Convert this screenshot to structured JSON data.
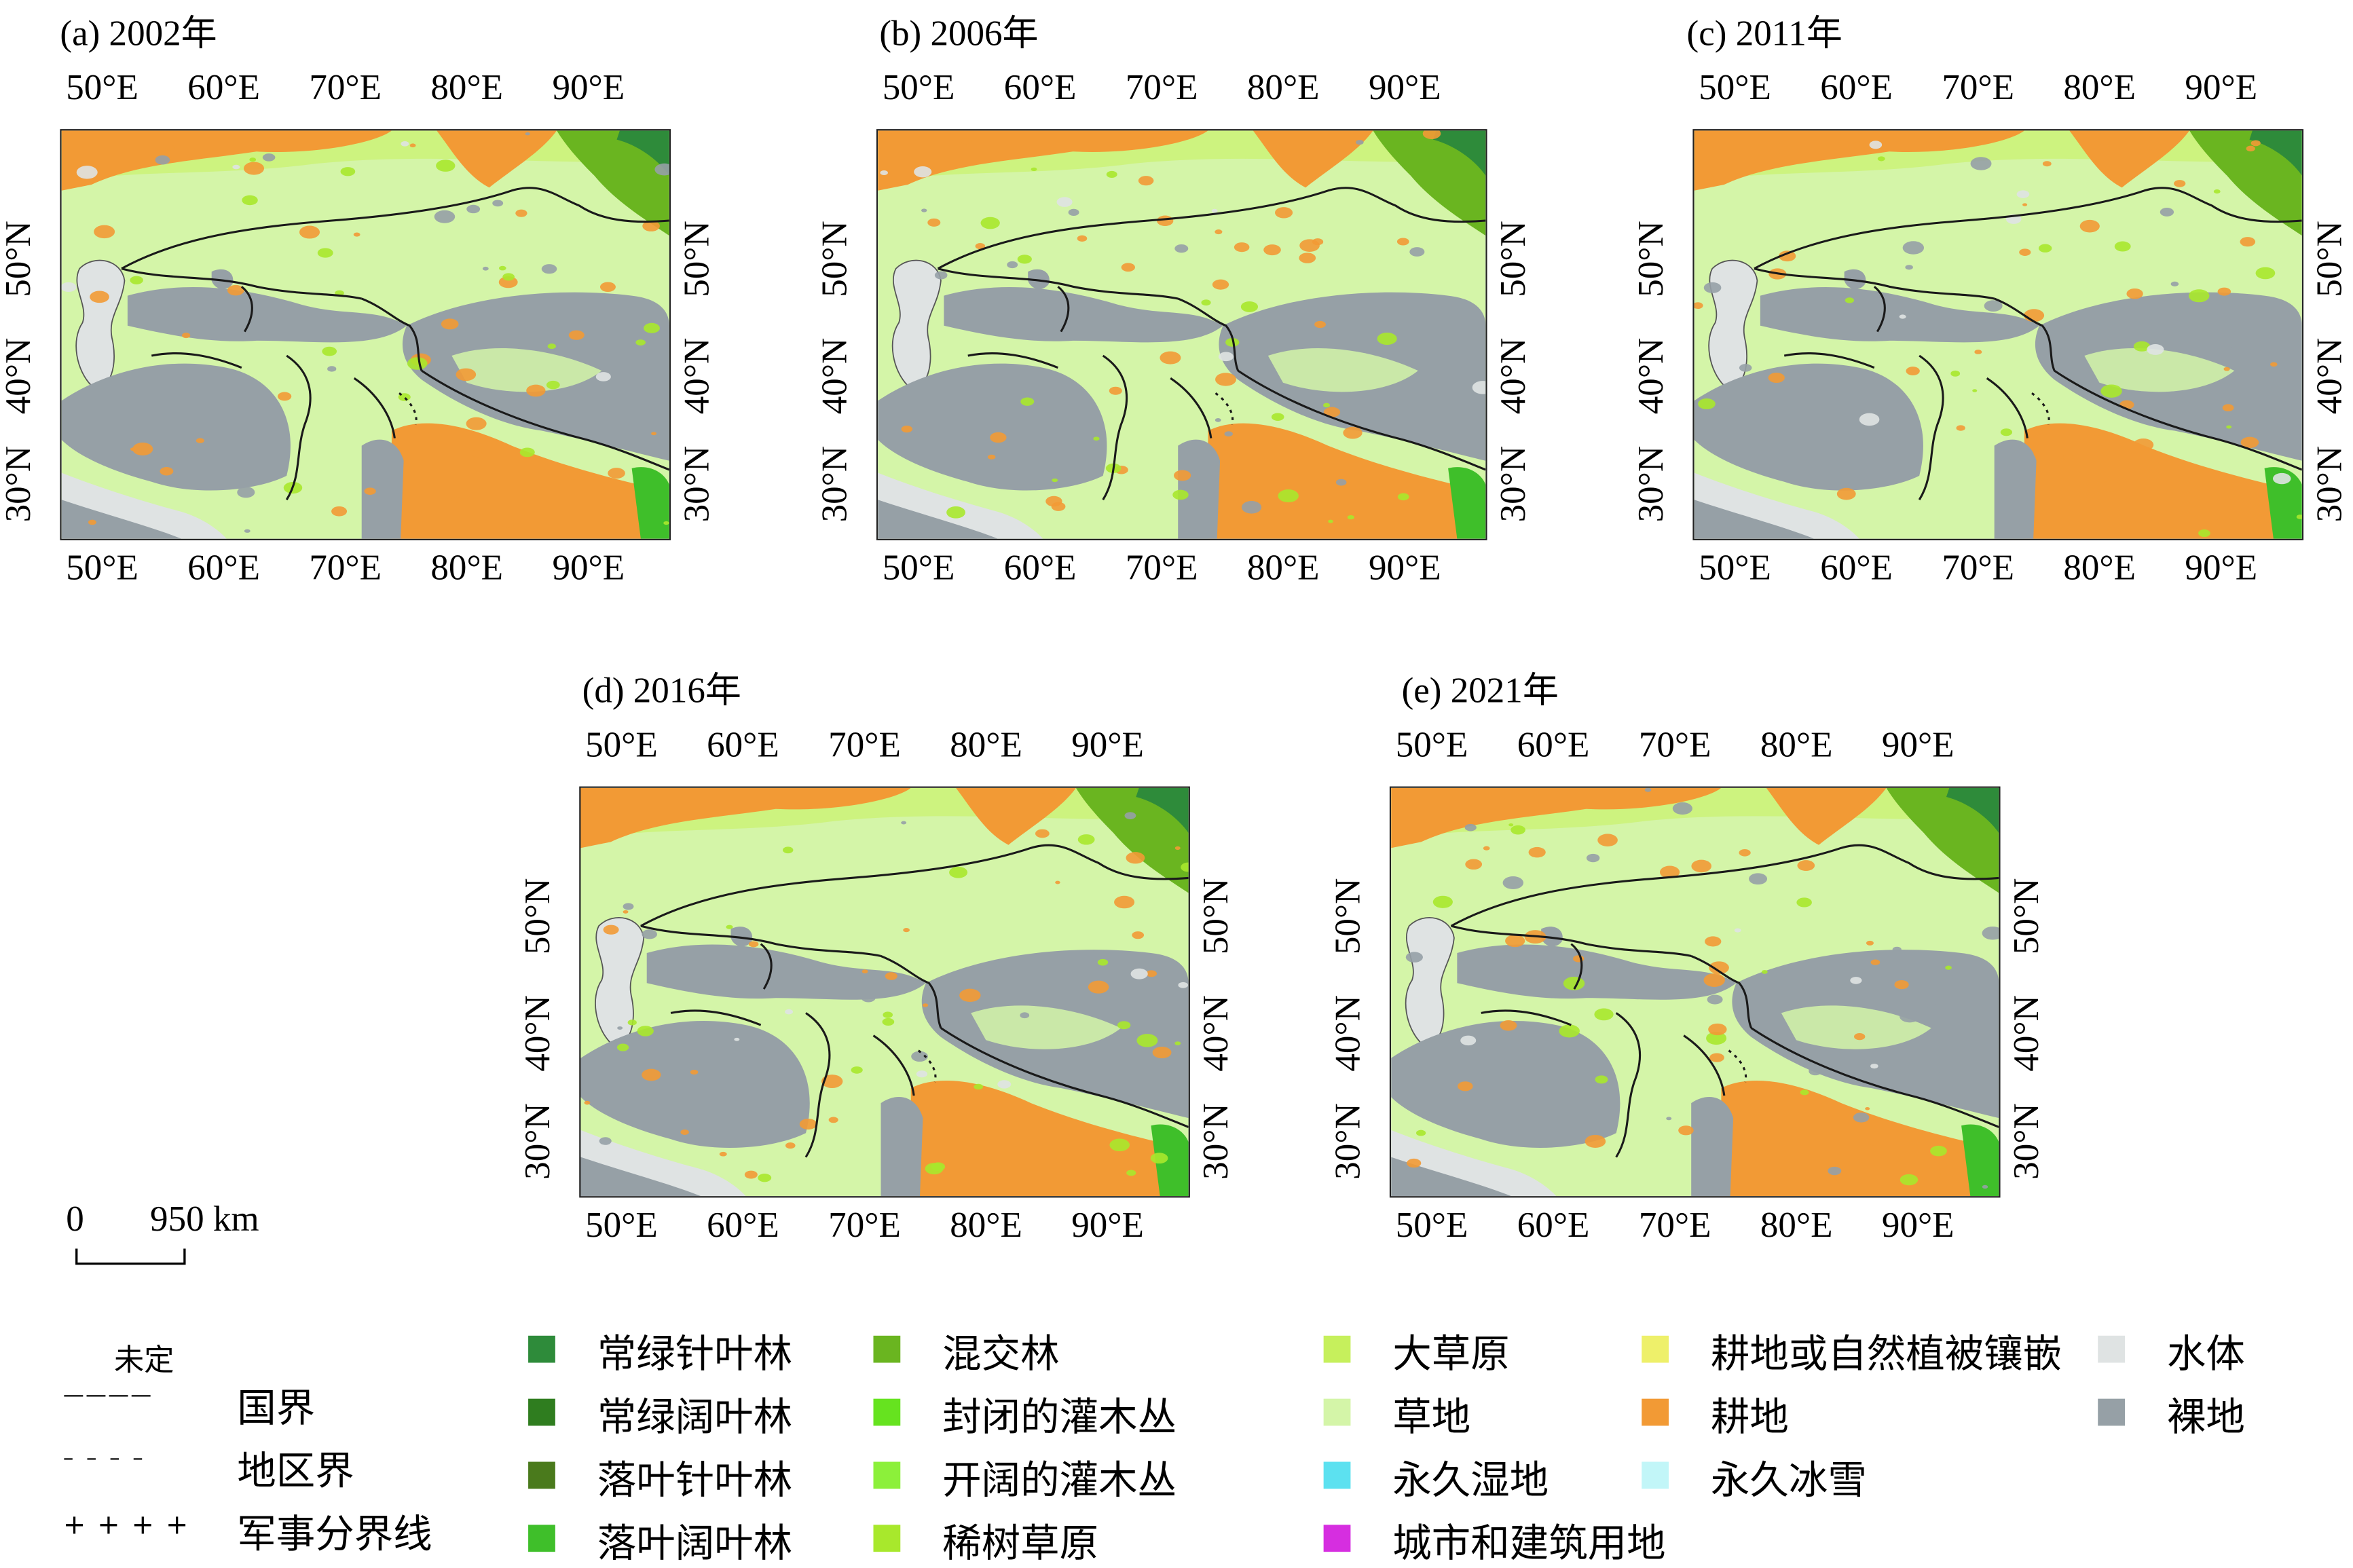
{
  "panels": [
    {
      "title": "(a) 2002年"
    },
    {
      "title": "(b) 2006年"
    },
    {
      "title": "(c) 2011年"
    },
    {
      "title": "(d) 2016年"
    },
    {
      "title": "(e) 2021年"
    }
  ],
  "axes": {
    "lon_labels": [
      "50°E",
      "60°E",
      "70°E",
      "80°E",
      "90°E"
    ],
    "lat_labels": [
      "30°N",
      "40°N",
      "50°N"
    ]
  },
  "scalebar": {
    "zero": "0",
    "distance": "950 km"
  },
  "boundary_legend": {
    "undetermined": "未定",
    "national": "国界",
    "regional": "地区界",
    "military": "军事分界线",
    "national_symbol": "————",
    "regional_symbol": "– – – –",
    "military_symbol": "+ + + +"
  },
  "landcover_legend": [
    {
      "label": "常绿针叶林",
      "color": "#2e8b3a"
    },
    {
      "label": "常绿阔叶林",
      "color": "#2f7d1f"
    },
    {
      "label": "落叶针叶林",
      "color": "#4a7a1c"
    },
    {
      "label": "落叶阔叶林",
      "color": "#3fbf2a"
    },
    {
      "label": "混交林",
      "color": "#6ab520"
    },
    {
      "label": "封闭的灌木丛",
      "color": "#66e31f"
    },
    {
      "label": "开阔的灌木丛",
      "color": "#8cf03a"
    },
    {
      "label": "稀树草原",
      "color": "#a8e82c"
    },
    {
      "label": "大草原",
      "color": "#c6f05c"
    },
    {
      "label": "草地",
      "color": "#d4f5a8"
    },
    {
      "label": "永久湿地",
      "color": "#5ce1f0"
    },
    {
      "label": "城市和建筑用地",
      "color": "#d62ee0"
    },
    {
      "label": "耕地或自然植被镶嵌",
      "color": "#eef06a"
    },
    {
      "label": "耕地",
      "color": "#f29a35"
    },
    {
      "label": "永久冰雪",
      "color": "#c2f6f8"
    },
    {
      "label": "水体",
      "color": "#dfe3e3"
    },
    {
      "label": "裸地",
      "color": "#96a0a6"
    }
  ]
}
